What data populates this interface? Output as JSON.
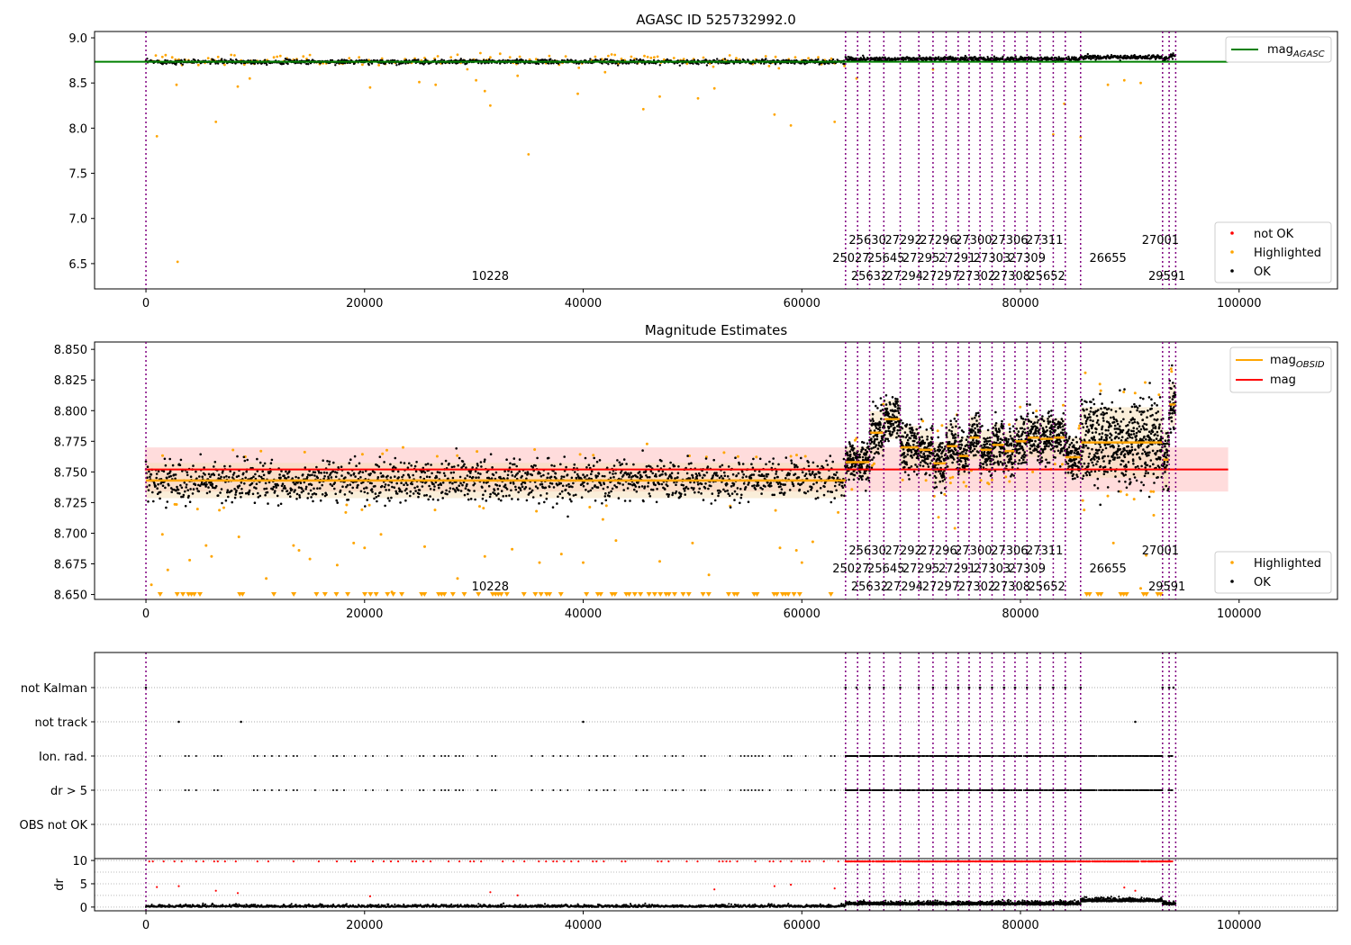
{
  "chart_data": [
    {
      "type": "scatter",
      "title": "AGASC ID 525732992.0",
      "xlabel": "",
      "ylabel": "",
      "xlim": [
        -4700,
        109000
      ],
      "ylim": [
        6.22,
        9.07
      ],
      "xticks": [
        0,
        20000,
        40000,
        60000,
        80000,
        100000
      ],
      "xtick_labels": [
        "0",
        "20000",
        "40000",
        "60000",
        "80000",
        "100000"
      ],
      "yticks": [
        6.5,
        7.0,
        7.5,
        8.0,
        8.5,
        9.0
      ],
      "ytick_labels": [
        "6.5",
        "7.0",
        "7.5",
        "8.0",
        "8.5",
        "9.0"
      ],
      "grid": false,
      "lines": [
        {
          "name": "mag_AGASC",
          "label_main": "mag",
          "label_sub": "AGASC",
          "y": 8.735,
          "x_range": [
            -4700,
            99000
          ],
          "color": "#008000"
        }
      ],
      "legend_lines": {
        "placement": "top-right"
      },
      "legend_points": {
        "placement": "bottom-right",
        "entries": [
          {
            "name": "not OK",
            "color": "#ff0000"
          },
          {
            "name": "Highlighted",
            "color": "#ffa500"
          },
          {
            "name": "OK",
            "color": "#000000"
          }
        ]
      },
      "ok_band": {
        "segments": [
          [
            0,
            64000,
            8.735,
            0.012
          ],
          [
            64000,
            94000,
            8.77,
            0.02
          ]
        ]
      },
      "highlighted_points": [
        [
          1000,
          7.91
        ],
        [
          2900,
          6.52
        ],
        [
          2800,
          8.48
        ],
        [
          6400,
          8.07
        ],
        [
          8400,
          8.46
        ],
        [
          9500,
          8.55
        ],
        [
          20500,
          8.45
        ],
        [
          25000,
          8.51
        ],
        [
          26500,
          8.48
        ],
        [
          30200,
          8.53
        ],
        [
          31000,
          8.41
        ],
        [
          31500,
          8.25
        ],
        [
          34000,
          8.58
        ],
        [
          35000,
          7.71
        ],
        [
          39500,
          8.38
        ],
        [
          42000,
          8.62
        ],
        [
          45500,
          8.21
        ],
        [
          47000,
          8.35
        ],
        [
          50500,
          8.33
        ],
        [
          52000,
          8.44
        ],
        [
          57500,
          8.15
        ],
        [
          59000,
          8.03
        ],
        [
          63000,
          8.07
        ],
        [
          65000,
          8.55
        ],
        [
          72000,
          8.65
        ],
        [
          83000,
          7.93
        ],
        [
          84000,
          8.27
        ],
        [
          85500,
          7.9
        ],
        [
          88000,
          8.48
        ],
        [
          89500,
          8.53
        ],
        [
          91000,
          8.5
        ]
      ],
      "obsids": [
        {
          "id": "10228",
          "x": 0
        },
        {
          "id": "25027",
          "x": 64000
        },
        {
          "id": "25630",
          "x": 65100
        },
        {
          "id": "25632",
          "x": 66200
        },
        {
          "id": "25645",
          "x": 67500
        },
        {
          "id": "27292",
          "x": 69000
        },
        {
          "id": "27294",
          "x": 70700
        },
        {
          "id": "27295",
          "x": 72000
        },
        {
          "id": "27296",
          "x": 73200
        },
        {
          "id": "27297",
          "x": 74300
        },
        {
          "id": "27291",
          "x": 75300
        },
        {
          "id": "27300",
          "x": 76300
        },
        {
          "id": "27302",
          "x": 77400
        },
        {
          "id": "27303",
          "x": 78500
        },
        {
          "id": "27306",
          "x": 79500
        },
        {
          "id": "27308",
          "x": 80600
        },
        {
          "id": "27309",
          "x": 81800
        },
        {
          "id": "27311",
          "x": 83000
        },
        {
          "id": "25652",
          "x": 84100
        },
        {
          "id": "26655",
          "x": 85500
        },
        {
          "id": "27001",
          "x": 93000
        },
        {
          "id": "29591",
          "x": 93600
        },
        {
          "id": "",
          "x": 94200
        }
      ],
      "obs_labels": [
        {
          "id": "10228",
          "x": 31500,
          "row": 2
        },
        {
          "id": "25630",
          "x": 66000,
          "row": 0
        },
        {
          "id": "27292",
          "x": 69300,
          "row": 0
        },
        {
          "id": "27296",
          "x": 72500,
          "row": 0
        },
        {
          "id": "27300",
          "x": 75700,
          "row": 0
        },
        {
          "id": "27306",
          "x": 79000,
          "row": 0
        },
        {
          "id": "27311",
          "x": 82200,
          "row": 0
        },
        {
          "id": "27001",
          "x": 92800,
          "row": 0
        },
        {
          "id": "25027",
          "x": 64500,
          "row": 1
        },
        {
          "id": "25645",
          "x": 67700,
          "row": 1
        },
        {
          "id": "27295",
          "x": 70900,
          "row": 1
        },
        {
          "id": "27291",
          "x": 74200,
          "row": 1
        },
        {
          "id": "27303",
          "x": 77400,
          "row": 1
        },
        {
          "id": "27309",
          "x": 80600,
          "row": 1
        },
        {
          "id": "26655",
          "x": 88000,
          "row": 1
        },
        {
          "id": "25632",
          "x": 66200,
          "row": 2
        },
        {
          "id": "27294",
          "x": 69400,
          "row": 2
        },
        {
          "id": "27297",
          "x": 72700,
          "row": 2
        },
        {
          "id": "27302",
          "x": 76000,
          "row": 2
        },
        {
          "id": "27308",
          "x": 79200,
          "row": 2
        },
        {
          "id": "25652",
          "x": 82400,
          "row": 2
        },
        {
          "id": "29591",
          "x": 93400,
          "row": 2
        }
      ]
    },
    {
      "type": "scatter",
      "title": "Magnitude Estimates",
      "xlabel": "",
      "ylabel": "",
      "xlim": [
        -4700,
        109000
      ],
      "ylim": [
        8.646,
        8.856
      ],
      "xticks": [
        0,
        20000,
        40000,
        60000,
        80000,
        100000
      ],
      "xtick_labels": [
        "0",
        "20000",
        "40000",
        "60000",
        "80000",
        "100000"
      ],
      "yticks": [
        8.65,
        8.675,
        8.7,
        8.725,
        8.75,
        8.775,
        8.8,
        8.825,
        8.85
      ],
      "ytick_labels": [
        "8.650",
        "8.675",
        "8.700",
        "8.725",
        "8.750",
        "8.775",
        "8.800",
        "8.825",
        "8.850"
      ],
      "grid": false,
      "mag": {
        "name": "mag",
        "y": 8.752,
        "band": [
          8.734,
          8.77
        ],
        "x_range": [
          -100,
          99000
        ],
        "color": "#ff0000"
      },
      "mag_obsid_segments": [
        {
          "x": [
            0,
            64000
          ],
          "y": 8.743,
          "sd": 0.009
        },
        {
          "x": [
            64000,
            66200
          ],
          "y": 8.758,
          "sd": 0.008
        },
        {
          "x": [
            66200,
            67500
          ],
          "y": 8.782,
          "sd": 0.011
        },
        {
          "x": [
            67500,
            69000
          ],
          "y": 8.793,
          "sd": 0.01
        },
        {
          "x": [
            69000,
            70700
          ],
          "y": 8.77,
          "sd": 0.011
        },
        {
          "x": [
            70700,
            72000
          ],
          "y": 8.768,
          "sd": 0.01
        },
        {
          "x": [
            72000,
            73200
          ],
          "y": 8.757,
          "sd": 0.011
        },
        {
          "x": [
            73200,
            74300
          ],
          "y": 8.771,
          "sd": 0.012
        },
        {
          "x": [
            74300,
            75300
          ],
          "y": 8.763,
          "sd": 0.01
        },
        {
          "x": [
            75300,
            76300
          ],
          "y": 8.778,
          "sd": 0.011
        },
        {
          "x": [
            76300,
            77400
          ],
          "y": 8.768,
          "sd": 0.01
        },
        {
          "x": [
            77400,
            78500
          ],
          "y": 8.772,
          "sd": 0.011
        },
        {
          "x": [
            78500,
            79500
          ],
          "y": 8.767,
          "sd": 0.01
        },
        {
          "x": [
            79500,
            80600
          ],
          "y": 8.775,
          "sd": 0.011
        },
        {
          "x": [
            80600,
            81800
          ],
          "y": 8.778,
          "sd": 0.01
        },
        {
          "x": [
            81800,
            83000
          ],
          "y": 8.777,
          "sd": 0.011
        },
        {
          "x": [
            83000,
            84100
          ],
          "y": 8.778,
          "sd": 0.01
        },
        {
          "x": [
            84100,
            85500
          ],
          "y": 8.762,
          "sd": 0.01
        },
        {
          "x": [
            85500,
            93000
          ],
          "y": 8.774,
          "sd": 0.018
        },
        {
          "x": [
            93000,
            93600
          ],
          "y": 8.76,
          "sd": 0.015
        },
        {
          "x": [
            93600,
            94200
          ],
          "y": 8.805,
          "sd": 0.011
        }
      ],
      "legend_lines": {
        "placement": "top-right",
        "entries": [
          {
            "name": "mag_OBSID",
            "label_main": "mag",
            "label_sub": "OBSID",
            "color": "#ffa500"
          },
          {
            "name": "mag",
            "label_main": "mag",
            "label_sub": "",
            "color": "#ff0000"
          }
        ]
      },
      "legend_points": {
        "placement": "bottom-right",
        "entries": [
          {
            "name": "Highlighted",
            "color": "#ffa500"
          },
          {
            "name": "OK",
            "color": "#000000"
          }
        ]
      },
      "highlighted_points": [
        [
          500,
          8.658
        ],
        [
          1500,
          8.699
        ],
        [
          2000,
          8.67
        ],
        [
          4000,
          8.678
        ],
        [
          5500,
          8.69
        ],
        [
          6000,
          8.681
        ],
        [
          8500,
          8.697
        ],
        [
          11000,
          8.663
        ],
        [
          13500,
          8.69
        ],
        [
          14000,
          8.686
        ],
        [
          15000,
          8.679
        ],
        [
          17500,
          8.674
        ],
        [
          19000,
          8.692
        ],
        [
          20000,
          8.688
        ],
        [
          21500,
          8.699
        ],
        [
          22500,
          8.652
        ],
        [
          25500,
          8.689
        ],
        [
          28500,
          8.663
        ],
        [
          31000,
          8.681
        ],
        [
          33500,
          8.687
        ],
        [
          36000,
          8.676
        ],
        [
          38000,
          8.683
        ],
        [
          40000,
          8.676
        ],
        [
          43000,
          8.694
        ],
        [
          47000,
          8.677
        ],
        [
          50000,
          8.692
        ],
        [
          51500,
          8.666
        ],
        [
          58000,
          8.688
        ],
        [
          59500,
          8.686
        ],
        [
          60000,
          8.676
        ],
        [
          61000,
          8.693
        ],
        [
          72500,
          8.713
        ],
        [
          74000,
          8.704
        ],
        [
          77000,
          8.741
        ],
        [
          88500,
          8.692
        ],
        [
          91500,
          8.682
        ],
        [
          91000,
          8.655
        ]
      ],
      "obs_labels_ref": 0
    },
    {
      "type": "scatter",
      "title": "",
      "xlabel": "",
      "ylabel": "",
      "xlim": [
        -4700,
        109000
      ],
      "yticks": [
        "not Kalman",
        "not track",
        "Ion. rad.",
        "dr > 5",
        "OBS not OK"
      ],
      "grid": true,
      "not_track_x": [
        3000,
        8700,
        40000,
        90500
      ],
      "not_kalman_x": [
        0,
        64000,
        65000,
        66200,
        67500,
        69000,
        70700,
        72000,
        73200,
        74300,
        75300,
        76300,
        77400,
        78500,
        79500,
        80600,
        81800,
        83000,
        84100,
        85500,
        93000,
        93600,
        94000
      ]
    },
    {
      "type": "scatter",
      "title": "",
      "xlabel": "",
      "ylabel": "dr",
      "xlim": [
        -4700,
        109000
      ],
      "ylim": [
        -0.8,
        10.4
      ],
      "yticks": [
        0,
        5,
        10
      ],
      "ytick_labels": [
        "0",
        "5",
        "10"
      ],
      "xticks": [
        0,
        20000,
        40000,
        60000,
        80000,
        100000
      ],
      "xtick_labels": [
        "0",
        "20000",
        "40000",
        "60000",
        "80000",
        "100000"
      ],
      "grid": true,
      "outliers": [
        [
          1000,
          4.3
        ],
        [
          3000,
          4.5
        ],
        [
          6400,
          3.5
        ],
        [
          8400,
          3.0
        ],
        [
          20500,
          2.3
        ],
        [
          31500,
          3.2
        ],
        [
          34000,
          2.5
        ],
        [
          52000,
          3.8
        ],
        [
          57500,
          4.5
        ],
        [
          59000,
          4.8
        ],
        [
          63000,
          4.0
        ],
        [
          89500,
          4.2
        ],
        [
          90500,
          3.5
        ]
      ]
    }
  ]
}
